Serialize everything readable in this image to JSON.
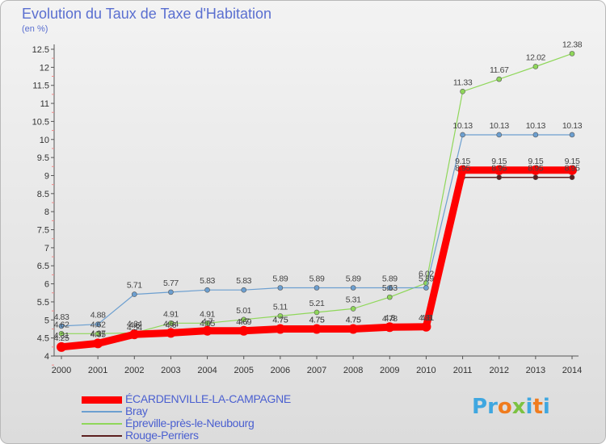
{
  "header": {
    "title": "Evolution du Taux de Taxe d'Habitation",
    "unit": "(en %)"
  },
  "brand": {
    "logo_letters": [
      "P",
      "r",
      "o",
      "x",
      "i",
      "t",
      "i"
    ],
    "logo_colors": [
      "#3fa7e0",
      "#3fa7e0",
      "#f07c1e",
      "#7cc242",
      "#3fa7e0",
      "#f07c1e",
      "#3fa7e0"
    ]
  },
  "chart_data": {
    "type": "line",
    "title": "Evolution du Taux de Taxe d'Habitation",
    "ylabel": "(en %)",
    "xlabel": "",
    "ylim": [
      4,
      12.5
    ],
    "yticks": [
      4,
      4.5,
      5,
      5.5,
      6,
      6.5,
      7,
      7.5,
      8,
      8.5,
      9,
      9.5,
      10,
      10.5,
      11,
      11.5,
      12,
      12.5
    ],
    "ytick_labels": [
      "4",
      "4.5",
      "5",
      "5.5",
      "6",
      "6.5",
      "7",
      "7.5",
      "8",
      "8.5",
      "9",
      "9.5",
      "10",
      "10.5",
      "11",
      "11.5",
      "12",
      "12.5"
    ],
    "x": [
      "2000",
      "2001",
      "2002",
      "2003",
      "2004",
      "2005",
      "2006",
      "2007",
      "2008",
      "2009",
      "2010",
      "2011",
      "2012",
      "2013",
      "2014"
    ],
    "grid": false,
    "legend_position": "bottom-left",
    "series": [
      {
        "name": "Rouge-Perriers",
        "color": "#5c1f1f",
        "values": [
          4.31,
          4.37,
          4.54,
          4.6,
          4.65,
          4.69,
          4.75,
          4.75,
          4.75,
          4.78,
          4.8,
          8.95,
          8.95,
          8.95,
          8.95
        ],
        "labels": [
          "4.31",
          "4.37",
          "4.54",
          "4.6",
          "4.65",
          "4.69",
          "4.75",
          "4.75",
          "4.75",
          "4.78",
          "4.8",
          "8.95",
          "8.95",
          "8.95",
          "8.95"
        ]
      },
      {
        "name": "Épreville-près-le-Neubourg",
        "color": "#8fd75a",
        "values": [
          4.62,
          4.62,
          4.64,
          4.91,
          4.91,
          5.01,
          5.11,
          5.21,
          5.31,
          5.63,
          6.02,
          11.33,
          11.67,
          12.02,
          12.38
        ],
        "labels": [
          "4.62",
          "4.62",
          "4.64",
          "4.91",
          "4.91",
          "5.01",
          "5.11",
          "5.21",
          "5.31",
          "5.63",
          "6.02",
          "11.33",
          "11.67",
          "12.02",
          "12.38"
        ]
      },
      {
        "name": "Bray",
        "color": "#6c9fd0",
        "values": [
          4.83,
          4.88,
          5.71,
          5.77,
          5.83,
          5.83,
          5.89,
          5.89,
          5.89,
          5.89,
          5.89,
          10.13,
          10.13,
          10.13,
          10.13
        ],
        "labels": [
          "4.83",
          "4.88",
          "5.71",
          "5.77",
          "5.83",
          "5.83",
          "5.89",
          "5.89",
          "5.89",
          "5.89",
          "5.89",
          "10.13",
          "10.13",
          "10.13",
          "10.13"
        ]
      },
      {
        "name": "ÉCARDENVILLE-LA-CAMPAGNE",
        "color": "#ff0000",
        "values": [
          4.25,
          4.35,
          4.6,
          4.64,
          4.7,
          4.7,
          4.75,
          4.75,
          4.75,
          4.8,
          4.81,
          9.15,
          9.15,
          9.15,
          9.15
        ],
        "labels": [
          "4.25",
          "4.35",
          "4.6",
          "4.64",
          "4.7",
          "4.7",
          "4.75",
          "4.75",
          "4.75",
          "4.8",
          "4.81",
          "9.15",
          "9.15",
          "9.15",
          "9.15"
        ]
      }
    ],
    "legend": [
      {
        "name": "ÉCARDENVILLE-LA-CAMPAGNE",
        "color": "#ff0000"
      },
      {
        "name": "Bray",
        "color": "#6c9fd0"
      },
      {
        "name": "Épreville-près-le-Neubourg",
        "color": "#8fd75a"
      },
      {
        "name": "Rouge-Perriers",
        "color": "#5c1f1f"
      }
    ]
  }
}
